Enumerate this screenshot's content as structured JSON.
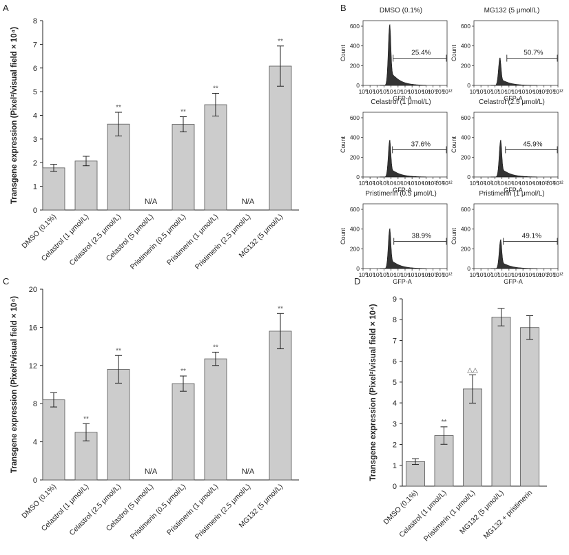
{
  "panels": {
    "A": "A",
    "B": "B",
    "C": "C",
    "D": "D"
  },
  "chart_data": [
    {
      "id": "A",
      "type": "bar",
      "ylabel": "Transgene expression (Pixel²/visual field × 10⁴)",
      "ylim": [
        0,
        8
      ],
      "yticks": [
        0,
        1,
        2,
        3,
        4,
        5,
        6,
        7,
        8
      ],
      "categories": [
        "DMSO (0.1%)",
        "Celastrol (1 μmol/L)",
        "Celastrol (2.5 μmol/L)",
        "Celastrol (5 μmol/L)",
        "Pristimerin (0.5 μmol/L)",
        "Pristimerin (1 μmol/L)",
        "Pristimerin (2.5 μmol/L)",
        "MG132 (5 μmol/L)"
      ],
      "values": [
        1.78,
        2.07,
        3.63,
        null,
        3.62,
        4.45,
        null,
        6.08
      ],
      "errors": [
        0.15,
        0.2,
        0.5,
        null,
        0.32,
        0.48,
        null,
        0.85
      ],
      "annotations": [
        "",
        "",
        "**",
        "N/A",
        "**",
        "**",
        "N/A",
        "**"
      ],
      "bar_color": "#cccccc"
    },
    {
      "id": "C",
      "type": "bar",
      "ylabel": "Transgene expression (Pixel²/visual field × 10⁴)",
      "ylim": [
        0,
        20
      ],
      "yticks": [
        0,
        4,
        8,
        12,
        16,
        20
      ],
      "categories": [
        "DMSO (0.1%)",
        "Celastrol (1 μmol/L)",
        "Celastrol (2.5 μmol/L)",
        "Celastrol (5 μmol/L)",
        "Pristimerin (0.5 μmol/L)",
        "Pristimerin (1 μmol/L)",
        "Pristimerin (2.5 μmol/L)",
        "MG132 (5 μmol/L)"
      ],
      "values": [
        8.4,
        5.0,
        11.6,
        null,
        10.1,
        12.7,
        null,
        15.6
      ],
      "errors": [
        0.75,
        0.9,
        1.45,
        null,
        0.8,
        0.7,
        null,
        1.85
      ],
      "annotations": [
        "",
        "**",
        "**",
        "N/A",
        "**",
        "**",
        "N/A",
        "**"
      ],
      "bar_color": "#cccccc"
    },
    {
      "id": "D",
      "type": "bar",
      "ylabel": "Transgene expression (Pixel²/visual field × 10⁴)",
      "ylim": [
        0,
        9
      ],
      "yticks": [
        0,
        1,
        2,
        3,
        4,
        5,
        6,
        7,
        8,
        9
      ],
      "categories": [
        "DMSO (0.1%)",
        "Celastrol (1 μmol/L)",
        "Pristimerin (1 μmol/L)",
        "MG132 (5 μmol/L)",
        "MG132 + pristimerin"
      ],
      "values": [
        1.18,
        2.43,
        4.67,
        8.12,
        7.62
      ],
      "errors": [
        0.14,
        0.42,
        0.68,
        0.42,
        0.57
      ],
      "annotations": [
        "",
        "**",
        "△△",
        "",
        ""
      ],
      "bar_color": "#cccccc"
    },
    {
      "id": "B",
      "type": "histogram",
      "xlabel": "GFP-A",
      "ylabel": "Count",
      "yticks": [
        0,
        200,
        400,
        600
      ],
      "xticks": [
        "10⁰",
        "10¹",
        "10²",
        "10³",
        "10⁴",
        "10⁵",
        "10⁶",
        "10⁷",
        "10⁸",
        "10⁹",
        "10¹⁰",
        "10¹¹",
        "10¹²"
      ],
      "xlim_log": [
        0,
        12
      ],
      "ylim": [
        0,
        600
      ],
      "fill_color": "#333333",
      "plots": [
        {
          "title": "DMSO (0.1%)",
          "percent": "25.4%",
          "peak_log": 3.8,
          "peak_count": 615,
          "gate_log": 4.3
        },
        {
          "title": "MG132 (5 μmol/L)",
          "percent": "50.7%",
          "peak_log": 3.7,
          "peak_count": 280,
          "gate_log": 4.7
        },
        {
          "title": "Celastrol (1 μmol/L)",
          "percent": "37.6%",
          "peak_log": 3.8,
          "peak_count": 370,
          "gate_log": 4.2
        },
        {
          "title": "Celastrol (2.5 μmol/L)",
          "percent": "45.9%",
          "peak_log": 3.8,
          "peak_count": 370,
          "gate_log": 4.5
        },
        {
          "title": "Pristimerin (0.5 μmol/L)",
          "percent": "38.9%",
          "peak_log": 3.8,
          "peak_count": 400,
          "gate_log": 4.4
        },
        {
          "title": "Pristimerin (1 μmol/L)",
          "percent": "49.1%",
          "peak_log": 3.8,
          "peak_count": 290,
          "gate_log": 4.2
        }
      ]
    }
  ]
}
